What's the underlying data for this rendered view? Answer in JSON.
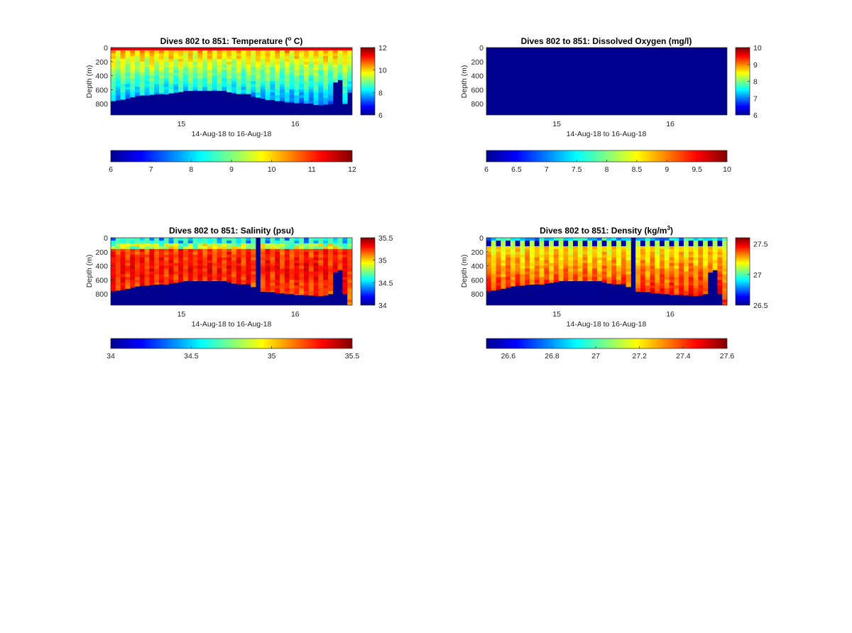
{
  "chart_data": [
    {
      "type": "heatmap",
      "title_main": "Dives 802 to 851: Temperature (",
      "title_sup": "o",
      "title_end": " C)",
      "xlabel": "14-Aug-18 to 16-Aug-18",
      "ylabel": "Depth (m)",
      "xticks": [
        "15",
        "16"
      ],
      "xtick_values": [
        15,
        16
      ],
      "xlim": [
        14.38,
        16.5
      ],
      "yticks": [
        "0",
        "200",
        "400",
        "600",
        "800"
      ],
      "ylim": [
        0,
        960
      ],
      "clim": [
        6,
        12
      ],
      "side_colorbar_ticks": [
        "12",
        "10",
        "8",
        "6"
      ],
      "bottom_colorbar_ticks": [
        "6",
        "7",
        "8",
        "9",
        "10",
        "11",
        "12"
      ],
      "dives": 50,
      "fill": "temperature",
      "bottom_depths_m": [
        760,
        750,
        740,
        725,
        705,
        690,
        680,
        680,
        670,
        665,
        660,
        665,
        650,
        640,
        630,
        615,
        615,
        615,
        615,
        615,
        615,
        615,
        615,
        615,
        635,
        650,
        660,
        660,
        660,
        700,
        710,
        725,
        745,
        745,
        760,
        760,
        780,
        780,
        790,
        790,
        795,
        795,
        815,
        820,
        810,
        800,
        495,
        460,
        800,
        640
      ],
      "y_range": "0-960"
    },
    {
      "type": "heatmap",
      "title_main": "Dives 802 to 851: Dissolved Oxygen (mg/l)",
      "title_sup": "",
      "title_end": "",
      "xlabel": "14-Aug-18 to 16-Aug-18",
      "ylabel": "Depth (m)",
      "xticks": [
        "15",
        "16"
      ],
      "xtick_values": [
        15,
        16
      ],
      "xlim": [
        14.38,
        16.5
      ],
      "yticks": [
        "0",
        "200",
        "400",
        "600",
        "800"
      ],
      "ylim": [
        0,
        960
      ],
      "clim": [
        6,
        10
      ],
      "side_colorbar_ticks": [
        "10",
        "9",
        "8",
        "7",
        "6"
      ],
      "bottom_colorbar_ticks": [
        "6",
        "6.5",
        "7",
        "7.5",
        "8",
        "8.5",
        "9",
        "9.5",
        "10"
      ],
      "dives": 50,
      "fill": "none",
      "bottom_depths_m": [],
      "y_range": "0-960"
    },
    {
      "type": "heatmap",
      "title_main": "Dives 802 to 851: Salinity (psu)",
      "title_sup": "",
      "title_end": "",
      "xlabel": "14-Aug-18 to 16-Aug-18",
      "ylabel": "Depth (m)",
      "xticks": [
        "15",
        "16"
      ],
      "xtick_values": [
        15,
        16
      ],
      "xlim": [
        14.38,
        16.5
      ],
      "yticks": [
        "0",
        "200",
        "400",
        "600",
        "800"
      ],
      "ylim": [
        0,
        960
      ],
      "clim": [
        34,
        35.5
      ],
      "side_colorbar_ticks": [
        "35.5",
        "35",
        "34.5",
        "34"
      ],
      "bottom_colorbar_ticks": [
        "34",
        "34.5",
        "35",
        "35.5"
      ],
      "dives": 50,
      "fill": "salinity",
      "bottom_depths_m": [
        760,
        750,
        740,
        725,
        705,
        690,
        680,
        680,
        670,
        665,
        660,
        665,
        650,
        640,
        630,
        615,
        615,
        615,
        615,
        615,
        615,
        615,
        615,
        615,
        635,
        650,
        660,
        660,
        660,
        700,
        0,
        765,
        770,
        770,
        790,
        790,
        800,
        800,
        815,
        815,
        820,
        820,
        825,
        830,
        820,
        800,
        495,
        460,
        800,
        960
      ],
      "y_range": "0-960"
    },
    {
      "type": "heatmap",
      "title_main": "Dives 802 to 851: Density (kg/m",
      "title_sup": "3",
      "title_end": ")",
      "xlabel": "14-Aug-18 to 16-Aug-18",
      "ylabel": "Depth (m)",
      "xticks": [
        "15",
        "16"
      ],
      "xtick_values": [
        15,
        16
      ],
      "xlim": [
        14.38,
        16.5
      ],
      "yticks": [
        "0",
        "200",
        "400",
        "600",
        "800"
      ],
      "ylim": [
        0,
        960
      ],
      "clim": [
        26.5,
        27.6
      ],
      "side_colorbar_ticks": [
        "27.5",
        "27",
        "26.5"
      ],
      "bottom_colorbar_ticks": [
        "26.6",
        "26.8",
        "27",
        "27.2",
        "27.4",
        "27.6"
      ],
      "dives": 50,
      "fill": "density",
      "bottom_depths_m": [
        760,
        750,
        740,
        725,
        705,
        690,
        680,
        680,
        670,
        665,
        660,
        665,
        650,
        640,
        630,
        615,
        615,
        615,
        615,
        615,
        615,
        615,
        615,
        615,
        635,
        650,
        660,
        660,
        660,
        700,
        0,
        765,
        770,
        770,
        790,
        790,
        800,
        800,
        815,
        815,
        820,
        820,
        825,
        830,
        820,
        800,
        495,
        460,
        800,
        960
      ],
      "y_range": "0-960"
    }
  ]
}
